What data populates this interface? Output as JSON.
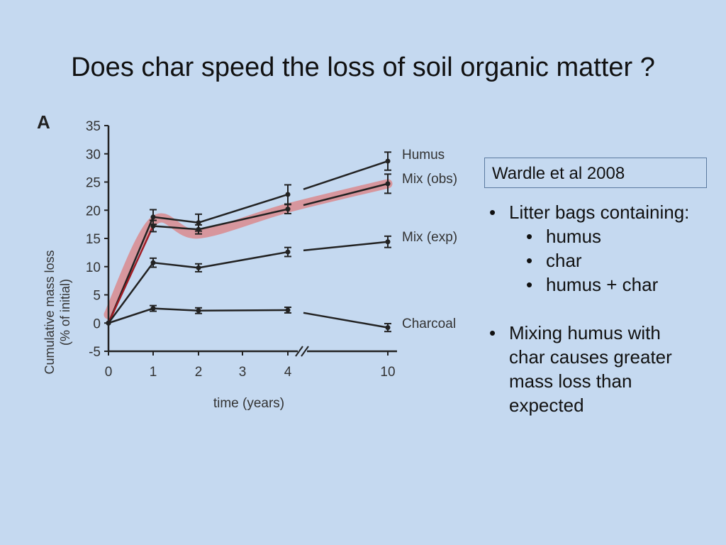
{
  "slide": {
    "title": "Does char speed the loss of soil organic matter ?",
    "citation": "Wardle et al 2008",
    "bullets": {
      "b1": "Litter bags containing:",
      "s1": "humus",
      "s2": "char",
      "s3": "humus + char",
      "b2_l1": "Mixing humus with",
      "b2_l2": "char causes greater",
      "b2_l3": "mass loss than",
      "b2_l4": "expected"
    },
    "bullet_glyph": "•"
  },
  "chart_data": {
    "type": "line",
    "panel_label": "A",
    "xlabel": "time (years)",
    "ylabel_line1": "Cumulative mass loss",
    "ylabel_line2": "(% of initial)",
    "x_ticks": [
      "0",
      "1",
      "2",
      "3",
      "4",
      "10"
    ],
    "y_ticks": [
      -5,
      0,
      5,
      10,
      15,
      20,
      25,
      30,
      35
    ],
    "ylim": [
      -5,
      35
    ],
    "x_axis_break": "between 4 and 10",
    "x": [
      0,
      1,
      2,
      4,
      10
    ],
    "series": [
      {
        "name": "Humus",
        "values": [
          0,
          18.8,
          17.8,
          22.8,
          28.7
        ],
        "errors": [
          0,
          1.3,
          1.5,
          1.7,
          1.6
        ],
        "color": "#222222"
      },
      {
        "name": "Mix (obs)",
        "values": [
          0,
          17.2,
          16.6,
          20.2,
          24.7
        ],
        "errors": [
          0,
          1.0,
          0.8,
          0.8,
          1.7
        ],
        "color": "#222222"
      },
      {
        "name": "Mix (exp)",
        "values": [
          0,
          10.7,
          9.8,
          12.6,
          14.4
        ],
        "errors": [
          0,
          0.8,
          0.7,
          0.8,
          1.0
        ],
        "color": "#222222"
      },
      {
        "name": "Charcoal",
        "values": [
          0,
          2.6,
          2.2,
          2.3,
          -0.8
        ],
        "errors": [
          0,
          0.5,
          0.5,
          0.5,
          0.7
        ],
        "color": "#222222"
      }
    ],
    "band": {
      "x": [
        0,
        1,
        2,
        4,
        10
      ],
      "values": [
        1.5,
        18.0,
        15.8,
        20.4,
        24.7
      ],
      "color": "#d98a8e"
    },
    "highlight_color": "#a01c24"
  }
}
